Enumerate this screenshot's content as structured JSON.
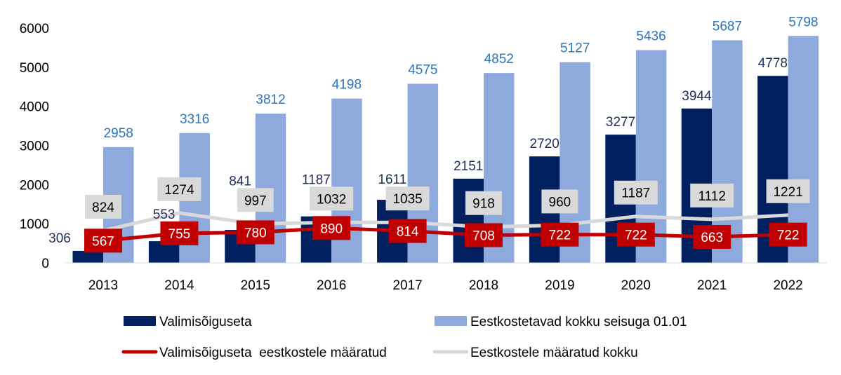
{
  "chart_data": {
    "type": "bar",
    "categories": [
      "2013",
      "2014",
      "2015",
      "2016",
      "2017",
      "2018",
      "2019",
      "2020",
      "2021",
      "2022"
    ],
    "ylim": [
      0,
      6000
    ],
    "yticks": [
      0,
      1000,
      2000,
      3000,
      4000,
      5000,
      6000
    ],
    "grid": false,
    "legend_position": "bottom",
    "series": [
      {
        "name": "Valimisõiguseta",
        "kind": "bar",
        "color": "#002060",
        "label_color": "#1F2D5A",
        "values": [
          306,
          553,
          841,
          1187,
          1611,
          2151,
          2720,
          3277,
          3944,
          4778
        ]
      },
      {
        "name": "Eestkostetavad kokku seisuga 01.01",
        "kind": "bar",
        "color": "#8EA9DB",
        "label_color": "#2E75B6",
        "values": [
          2958,
          3316,
          3812,
          4198,
          4575,
          4852,
          5127,
          5436,
          5687,
          5798
        ]
      },
      {
        "name": "Valimisõiguseta  eestkostele määratud",
        "kind": "line",
        "color": "#C00000",
        "values": [
          567,
          755,
          780,
          890,
          814,
          708,
          722,
          722,
          663,
          722
        ]
      },
      {
        "name": "Eestkostele määratud kokku",
        "kind": "line",
        "color": "#D9D9D9",
        "values": [
          824,
          1274,
          997,
          1032,
          1035,
          918,
          960,
          1187,
          1112,
          1221
        ]
      }
    ]
  }
}
